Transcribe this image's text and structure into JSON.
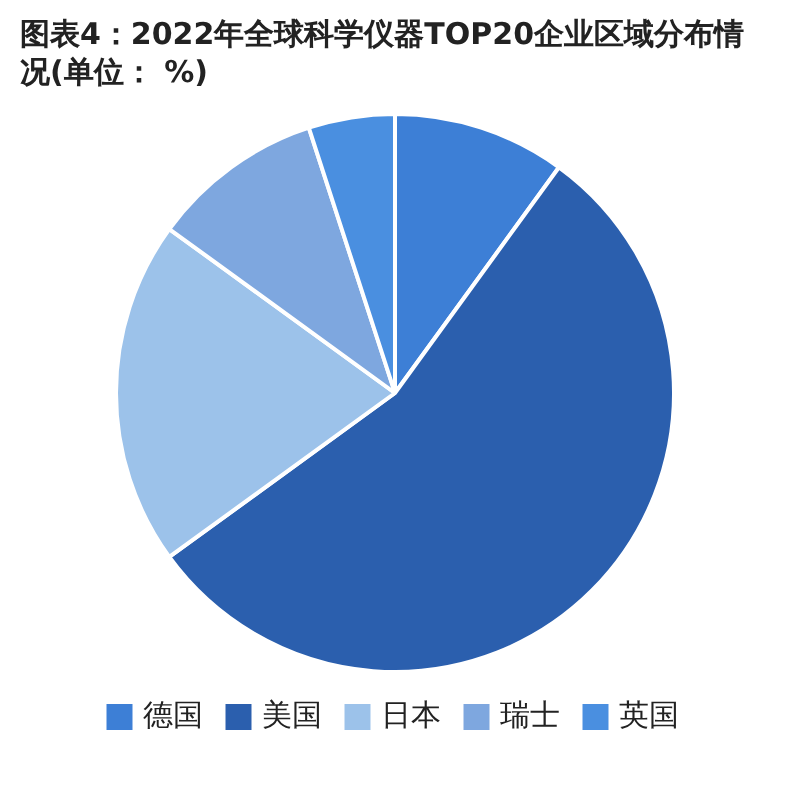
{
  "chart_data": {
    "type": "pie",
    "title": "图表4：2022年全球科学仪器TOP20企业区域分布情况(单位： %)",
    "categories": [
      "德国",
      "美国",
      "日本",
      "瑞士",
      "英国"
    ],
    "values": [
      10,
      55,
      20,
      10,
      5
    ],
    "colors": [
      "#3d7fd6",
      "#2b5fae",
      "#9cc2ea",
      "#7ea7df",
      "#4a8fe0"
    ],
    "legend": "bottom"
  }
}
